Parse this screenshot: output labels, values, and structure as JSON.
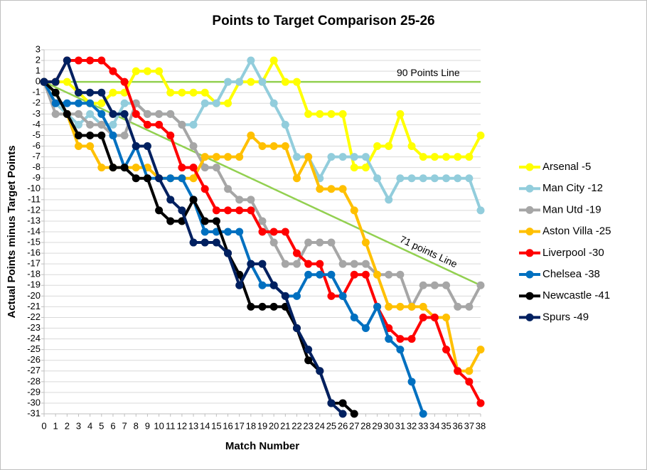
{
  "chart_data": {
    "type": "line",
    "title": "Points to Target Comparison 25-26",
    "x_label": "Match Number",
    "y_label": "Actual Points minus Target Points",
    "x": [
      0,
      1,
      2,
      3,
      4,
      5,
      6,
      7,
      8,
      9,
      10,
      11,
      12,
      13,
      14,
      15,
      16,
      17,
      18,
      19,
      20,
      21,
      22,
      23,
      24,
      25,
      26,
      27,
      28,
      29,
      30,
      31,
      32,
      33,
      34,
      35,
      36,
      37,
      38
    ],
    "xlim": [
      0,
      38
    ],
    "xticks": [
      0,
      1,
      2,
      3,
      4,
      5,
      6,
      7,
      8,
      9,
      10,
      11,
      12,
      13,
      14,
      15,
      16,
      17,
      18,
      19,
      20,
      21,
      22,
      23,
      24,
      25,
      26,
      27,
      28,
      29,
      30,
      31,
      32,
      33,
      34,
      35,
      36,
      37,
      38
    ],
    "ylim": [
      -31,
      3
    ],
    "yticks": [
      3,
      2,
      1,
      0,
      -1,
      -2,
      -3,
      -4,
      -5,
      -6,
      -7,
      -8,
      -9,
      -10,
      -11,
      -12,
      -13,
      -14,
      -15,
      -16,
      -17,
      -18,
      -19,
      -20,
      -21,
      -22,
      -23,
      -24,
      -25,
      -26,
      -27,
      -28,
      -29,
      -30,
      -31
    ],
    "grid": true,
    "legend": "right",
    "reference_lines": [
      {
        "label": "90 Points Line",
        "x": [
          0,
          38
        ],
        "values": [
          0,
          0
        ],
        "color": "#92d050"
      },
      {
        "label": "71 points Line",
        "x": [
          0,
          38
        ],
        "values": [
          0,
          -19
        ],
        "color": "#92d050"
      }
    ],
    "series": [
      {
        "name": "Arsenal -5",
        "color": "#ffff00",
        "values": [
          0,
          0,
          0,
          -1,
          -2,
          -2,
          -1,
          -1,
          1,
          1,
          1,
          -1,
          -1,
          -1,
          -1,
          -2,
          -2,
          0,
          0,
          0,
          2,
          0,
          0,
          -3,
          -3,
          -3,
          -3,
          -8,
          -8,
          -6,
          -6,
          -3,
          -6,
          -7,
          -7,
          -7,
          -7,
          -7,
          -5
        ]
      },
      {
        "name": "Man City -12",
        "color": "#92cddc",
        "values": [
          0,
          -2,
          -3,
          -4,
          -3,
          -4,
          -4,
          -2,
          -2,
          -3,
          -3,
          -3,
          -4,
          -4,
          -2,
          -2,
          0,
          0,
          2,
          0,
          -2,
          -4,
          -7,
          -7,
          -9,
          -7,
          -7,
          -7,
          -7,
          -9,
          -11,
          -9,
          -9,
          -9,
          -9,
          -9,
          -9,
          -9,
          -12
        ]
      },
      {
        "name": "Man Utd -19",
        "color": "#a6a6a6",
        "values": [
          0,
          -3,
          -3,
          -3,
          -4,
          -4,
          -5,
          -5,
          -2,
          -3,
          -3,
          -3,
          -4,
          -6,
          -8,
          -8,
          -10,
          -11,
          -11,
          -13,
          -15,
          -17,
          -17,
          -15,
          -15,
          -15,
          -17,
          -17,
          -17,
          -18,
          -18,
          -18,
          -21,
          -19,
          -19,
          -19,
          -21,
          -21,
          -19
        ]
      },
      {
        "name": "Aston Villa -25",
        "color": "#ffc000",
        "values": [
          0,
          -1,
          -3,
          -6,
          -6,
          -8,
          -8,
          -8,
          -8,
          -8,
          -9,
          -9,
          -9,
          -9,
          -7,
          -7,
          -7,
          -7,
          -5,
          -6,
          -6,
          -6,
          -9,
          -7,
          -10,
          -10,
          -10,
          -12,
          -15,
          -18,
          -21,
          -21,
          -21,
          -21,
          -22,
          -22,
          -27,
          -27,
          -25
        ]
      },
      {
        "name": "Liverpool -30",
        "color": "#ff0000",
        "values": [
          0,
          0,
          2,
          2,
          2,
          2,
          1,
          0,
          -3,
          -4,
          -4,
          -5,
          -8,
          -8,
          -10,
          -12,
          -12,
          -12,
          -12,
          -14,
          -14,
          -14,
          -16,
          -17,
          -17,
          -20,
          -20,
          -18,
          -18,
          -21,
          -23,
          -24,
          -24,
          -22,
          -22,
          -25,
          -27,
          -28,
          -30
        ]
      },
      {
        "name": "Chelsea -38",
        "color": "#0070c0",
        "values": [
          0,
          -2,
          -2,
          -2,
          -2,
          -3,
          -5,
          -8,
          -6,
          -9,
          -9,
          -9,
          -9,
          -11,
          -14,
          -14,
          -14,
          -14,
          -17,
          -19,
          -19,
          -20,
          -20,
          -18,
          -18,
          -18,
          -20,
          -22,
          -23,
          -21,
          -24,
          -25,
          -28,
          -31,
          null,
          null,
          null,
          null,
          null
        ]
      },
      {
        "name": "Newcastle -41",
        "color": "#000000",
        "values": [
          0,
          -1,
          -3,
          -5,
          -5,
          -5,
          -8,
          -8,
          -9,
          -9,
          -12,
          -13,
          -13,
          -11,
          -13,
          -13,
          -16,
          -18,
          -21,
          -21,
          -21,
          -21,
          -23,
          -26,
          -27,
          -30,
          -30,
          -31,
          null,
          null,
          null,
          null,
          null,
          null,
          null,
          null,
          null,
          null,
          null
        ]
      },
      {
        "name": "Spurs -49",
        "color": "#002060",
        "values": [
          0,
          0,
          2,
          -1,
          -1,
          -1,
          -3,
          -3,
          -6,
          -6,
          -9,
          -11,
          -12,
          -15,
          -15,
          -15,
          -16,
          -19,
          -17,
          -17,
          -19,
          -20,
          -23,
          -25,
          -27,
          -30,
          -31,
          null,
          null,
          null,
          null,
          null,
          null,
          null,
          null,
          null,
          null,
          null,
          null
        ]
      }
    ]
  }
}
